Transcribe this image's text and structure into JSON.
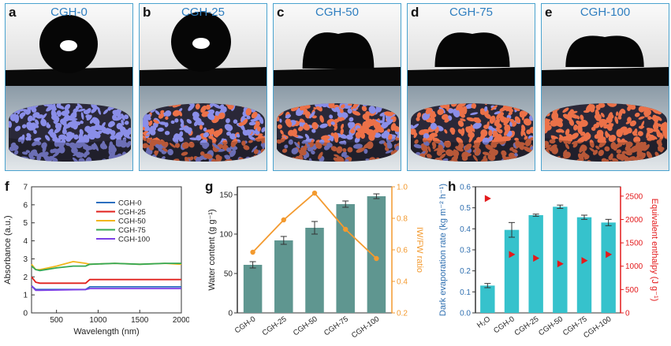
{
  "panels": [
    {
      "letter": "a",
      "title": "CGH-0",
      "orange": 0.0
    },
    {
      "letter": "b",
      "title": "CGH-25",
      "orange": 0.35
    },
    {
      "letter": "c",
      "title": "CGH-50",
      "orange": 0.6
    },
    {
      "letter": "d",
      "title": "CGH-75",
      "orange": 0.82
    },
    {
      "letter": "e",
      "title": "CGH-100",
      "orange": 1.0
    }
  ],
  "colors": {
    "frame": "#4aa3cf",
    "blue_phase": "#8a8ee8",
    "orange_phase": "#ec7148",
    "bar": "#5f9690",
    "orange_line": "#f39a2f",
    "cyan_bar": "#36c2cc",
    "red_marker": "#e31a1c"
  },
  "chart_data": [
    {
      "panel": "f",
      "type": "line",
      "xlabel": "Wavelength (nm)",
      "ylabel": "Absorbance (a.u.)",
      "xlim": [
        200,
        2000
      ],
      "ylim": [
        0,
        7
      ],
      "xticks": [
        500,
        1000,
        1500,
        2000
      ],
      "yticks": [
        0,
        1,
        2,
        3,
        4,
        5,
        6,
        7
      ],
      "legend_position": "top-right",
      "series": [
        {
          "name": "CGH-0",
          "color": "#2c6fbf",
          "x": [
            200,
            250,
            300,
            850,
            900,
            2000
          ],
          "y": [
            1.5,
            1.3,
            1.3,
            1.3,
            1.45,
            1.45
          ]
        },
        {
          "name": "CGH-25",
          "color": "#e0201c",
          "x": [
            200,
            250,
            300,
            850,
            900,
            2000
          ],
          "y": [
            2.0,
            1.7,
            1.65,
            1.65,
            1.85,
            1.85
          ]
        },
        {
          "name": "CGH-50",
          "color": "#f2b61b",
          "x": [
            200,
            250,
            300,
            500,
            700,
            850,
            900,
            1200,
            1500,
            1800,
            2000
          ],
          "y": [
            2.7,
            2.4,
            2.4,
            2.6,
            2.85,
            2.75,
            2.7,
            2.75,
            2.7,
            2.75,
            2.7
          ]
        },
        {
          "name": "CGH-75",
          "color": "#34a853",
          "x": [
            200,
            250,
            300,
            500,
            700,
            850,
            900,
            1200,
            1500,
            1800,
            2000
          ],
          "y": [
            2.6,
            2.4,
            2.35,
            2.5,
            2.6,
            2.6,
            2.7,
            2.75,
            2.7,
            2.75,
            2.75
          ]
        },
        {
          "name": "CGH-100",
          "color": "#7c3fe6",
          "x": [
            200,
            250,
            300,
            850,
            900,
            2000
          ],
          "y": [
            1.5,
            1.25,
            1.25,
            1.3,
            1.35,
            1.35
          ]
        }
      ]
    },
    {
      "panel": "g",
      "type": "bar",
      "categories": [
        "CGH-0",
        "CGH-25",
        "CGH-50",
        "CGH-75",
        "CGH-100"
      ],
      "ylabel": "Water content (g g⁻¹)",
      "ylim": [
        0,
        160
      ],
      "yticks": [
        0,
        50,
        100,
        150
      ],
      "values": [
        61,
        92,
        108,
        138,
        148
      ],
      "errors": [
        4,
        5,
        8,
        4,
        3
      ],
      "y2label": "IW/FW ratio",
      "y2lim": [
        0.2,
        1.0
      ],
      "y2ticks": [
        0.2,
        0.4,
        0.6,
        0.8,
        1.0
      ],
      "y2values": [
        0.585,
        0.79,
        0.96,
        0.73,
        0.545
      ]
    },
    {
      "panel": "h",
      "type": "bar",
      "categories": [
        "H₂O",
        "CGH-0",
        "CGH-25",
        "CGH-50",
        "CGH-75",
        "CGH-100"
      ],
      "ylabel": "Dark evaporation rate (kg m⁻² h⁻¹)",
      "ylim": [
        0,
        0.6
      ],
      "yticks": [
        0.0,
        0.1,
        0.2,
        0.3,
        0.4,
        0.5,
        0.6
      ],
      "values": [
        0.13,
        0.395,
        0.465,
        0.505,
        0.455,
        0.43
      ],
      "errors": [
        0.01,
        0.035,
        0.005,
        0.008,
        0.01,
        0.015
      ],
      "y2label": "Equivalent enthalpy (J g⁻¹)",
      "y2lim": [
        0,
        2700
      ],
      "y2ticks": [
        0,
        500,
        1000,
        1500,
        2000,
        2500
      ],
      "y2values": [
        2450,
        1250,
        1170,
        1050,
        1120,
        1250
      ]
    }
  ]
}
